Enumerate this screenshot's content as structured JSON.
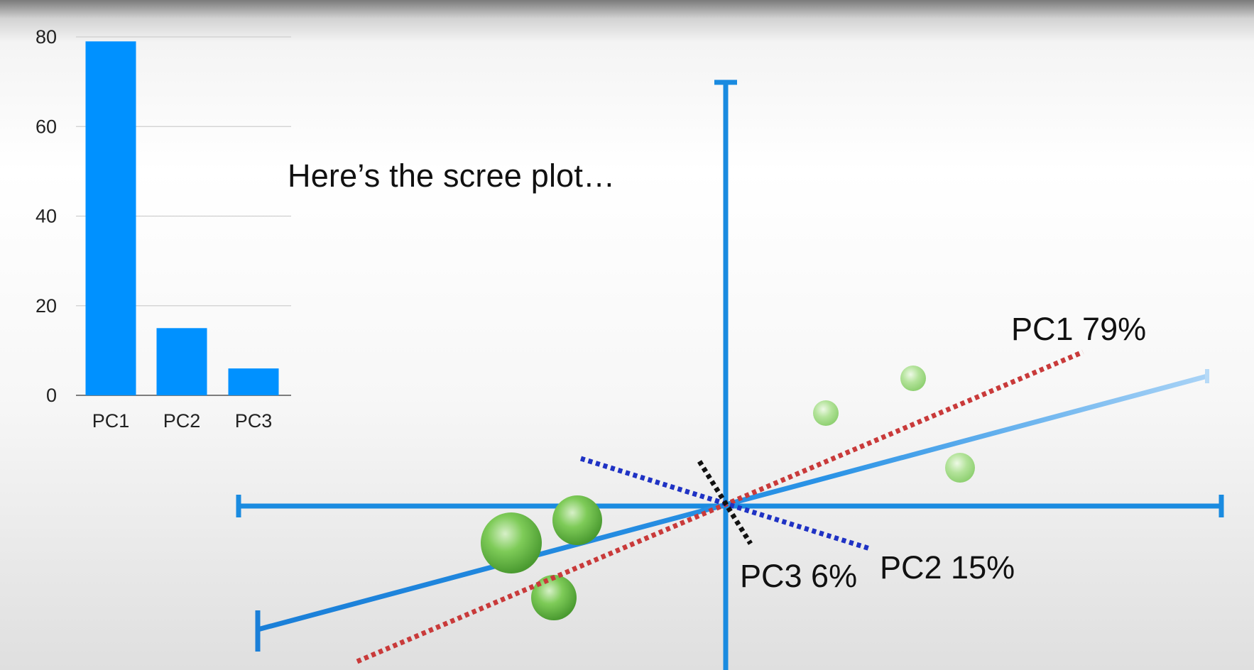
{
  "caption": "Here’s the scree plot…",
  "colors": {
    "bar": "#0091ff",
    "axis": "#1a8be0",
    "pc1_line": "#c93a3a",
    "pc2_line": "#1f32c4",
    "pc3_line": "#111111",
    "points": "#6dc04a"
  },
  "chart_data": {
    "type": "bar",
    "categories": [
      "PC1",
      "PC2",
      "PC3"
    ],
    "values": [
      79,
      15,
      6
    ],
    "ylim": [
      0,
      80
    ],
    "yticks": [
      "0",
      "20",
      "40",
      "60",
      "80"
    ],
    "grid": true,
    "title": "",
    "xlabel": "",
    "ylabel": ""
  },
  "pca_labels": {
    "pc1": "PC1 79%",
    "pc2": "PC2 15%",
    "pc3": "PC3 6%"
  }
}
